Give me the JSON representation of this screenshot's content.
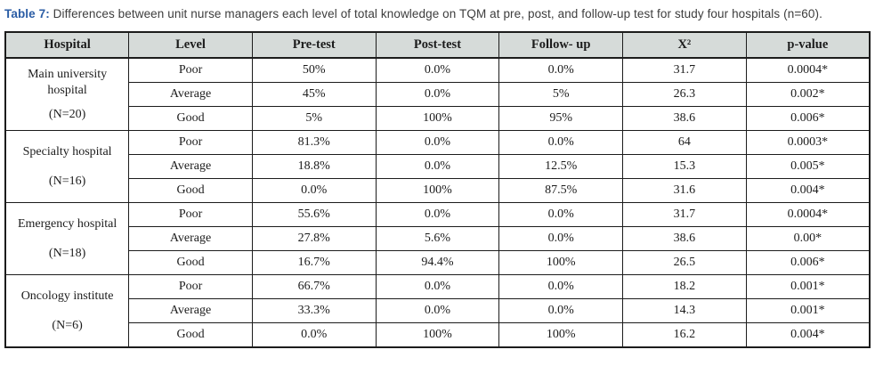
{
  "caption": {
    "label": "Table 7:",
    "text": " Differences between unit nurse managers each level of total knowledge on TQM at pre, post, and follow-up test for study four hospitals (n=60)."
  },
  "colors": {
    "caption_label": "#2b5da5",
    "header_bg": "#d6dbd9",
    "border": "#1c1c1c",
    "text": "#1c1c1c"
  },
  "table": {
    "headers": [
      "Hospital",
      "Level",
      "Pre-test",
      "Post-test",
      "Follow- up",
      "X²",
      "p-value"
    ],
    "groups": [
      {
        "hospital": "Main university hospital",
        "n_label": "(N=20)",
        "rows": [
          {
            "level": "Poor",
            "pre": "50%",
            "post": "0.0%",
            "follow": "0.0%",
            "x2": "31.7",
            "p": "0.0004*"
          },
          {
            "level": "Average",
            "pre": "45%",
            "post": "0.0%",
            "follow": "5%",
            "x2": "26.3",
            "p": "0.002*"
          },
          {
            "level": "Good",
            "pre": "5%",
            "post": "100%",
            "follow": "95%",
            "x2": "38.6",
            "p": "0.006*"
          }
        ]
      },
      {
        "hospital": "Specialty hospital",
        "n_label": "(N=16)",
        "rows": [
          {
            "level": "Poor",
            "pre": "81.3%",
            "post": "0.0%",
            "follow": "0.0%",
            "x2": "64",
            "p": "0.0003*"
          },
          {
            "level": "Average",
            "pre": "18.8%",
            "post": "0.0%",
            "follow": "12.5%",
            "x2": "15.3",
            "p": "0.005*"
          },
          {
            "level": "Good",
            "pre": "0.0%",
            "post": "100%",
            "follow": "87.5%",
            "x2": "31.6",
            "p": "0.004*"
          }
        ]
      },
      {
        "hospital": "Emergency hospital",
        "n_label": "(N=18)",
        "rows": [
          {
            "level": "Poor",
            "pre": "55.6%",
            "post": "0.0%",
            "follow": "0.0%",
            "x2": "31.7",
            "p": "0.0004*"
          },
          {
            "level": "Average",
            "pre": "27.8%",
            "post": "5.6%",
            "follow": "0.0%",
            "x2": "38.6",
            "p": "0.00*"
          },
          {
            "level": "Good",
            "pre": "16.7%",
            "post": "94.4%",
            "follow": "100%",
            "x2": "26.5",
            "p": "0.006*"
          }
        ]
      },
      {
        "hospital": "Oncology institute",
        "n_label": "(N=6)",
        "rows": [
          {
            "level": "Poor",
            "pre": "66.7%",
            "post": "0.0%",
            "follow": "0.0%",
            "x2": "18.2",
            "p": "0.001*"
          },
          {
            "level": "Average",
            "pre": "33.3%",
            "post": "0.0%",
            "follow": "0.0%",
            "x2": "14.3",
            "p": "0.001*"
          },
          {
            "level": "Good",
            "pre": "0.0%",
            "post": "100%",
            "follow": "100%",
            "x2": "16.2",
            "p": "0.004*"
          }
        ]
      }
    ]
  }
}
